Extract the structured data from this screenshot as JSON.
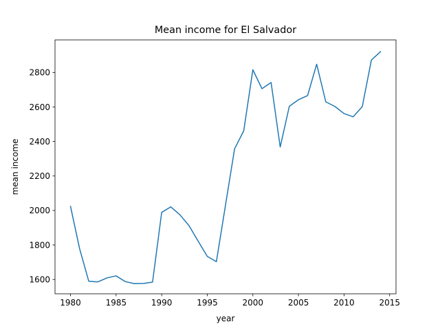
{
  "chart_data": {
    "type": "line",
    "title": "Mean income for El Salvador",
    "xlabel": "year",
    "ylabel": "mean income",
    "xlim": [
      1978.3,
      2015.7
    ],
    "ylim": [
      1517,
      2989
    ],
    "xticks": [
      1980,
      1985,
      1990,
      1995,
      2000,
      2005,
      2010,
      2015
    ],
    "yticks": [
      1600,
      1800,
      2000,
      2200,
      2400,
      2600,
      2800
    ],
    "grid": false,
    "legend": "none",
    "series_color": "#1f77b4",
    "x": [
      1980,
      1981,
      1982,
      1983,
      1984,
      1985,
      1986,
      1987,
      1988,
      1989,
      1990,
      1991,
      1992,
      1993,
      1994,
      1995,
      1996,
      1997,
      1998,
      1999,
      2000,
      2001,
      2002,
      2003,
      2004,
      2005,
      2006,
      2007,
      2008,
      2009,
      2010,
      2011,
      2012,
      2013,
      2014
    ],
    "series": [
      {
        "values": [
          2024,
          1778,
          1590,
          1586,
          1609,
          1621,
          1588,
          1576,
          1577,
          1585,
          1989,
          2021,
          1975,
          1912,
          1822,
          1734,
          1703,
          2031,
          2358,
          2462,
          2816,
          2706,
          2742,
          2368,
          2604,
          2642,
          2666,
          2848,
          2630,
          2603,
          2562,
          2543,
          2602,
          2872,
          2921
        ]
      }
    ]
  }
}
